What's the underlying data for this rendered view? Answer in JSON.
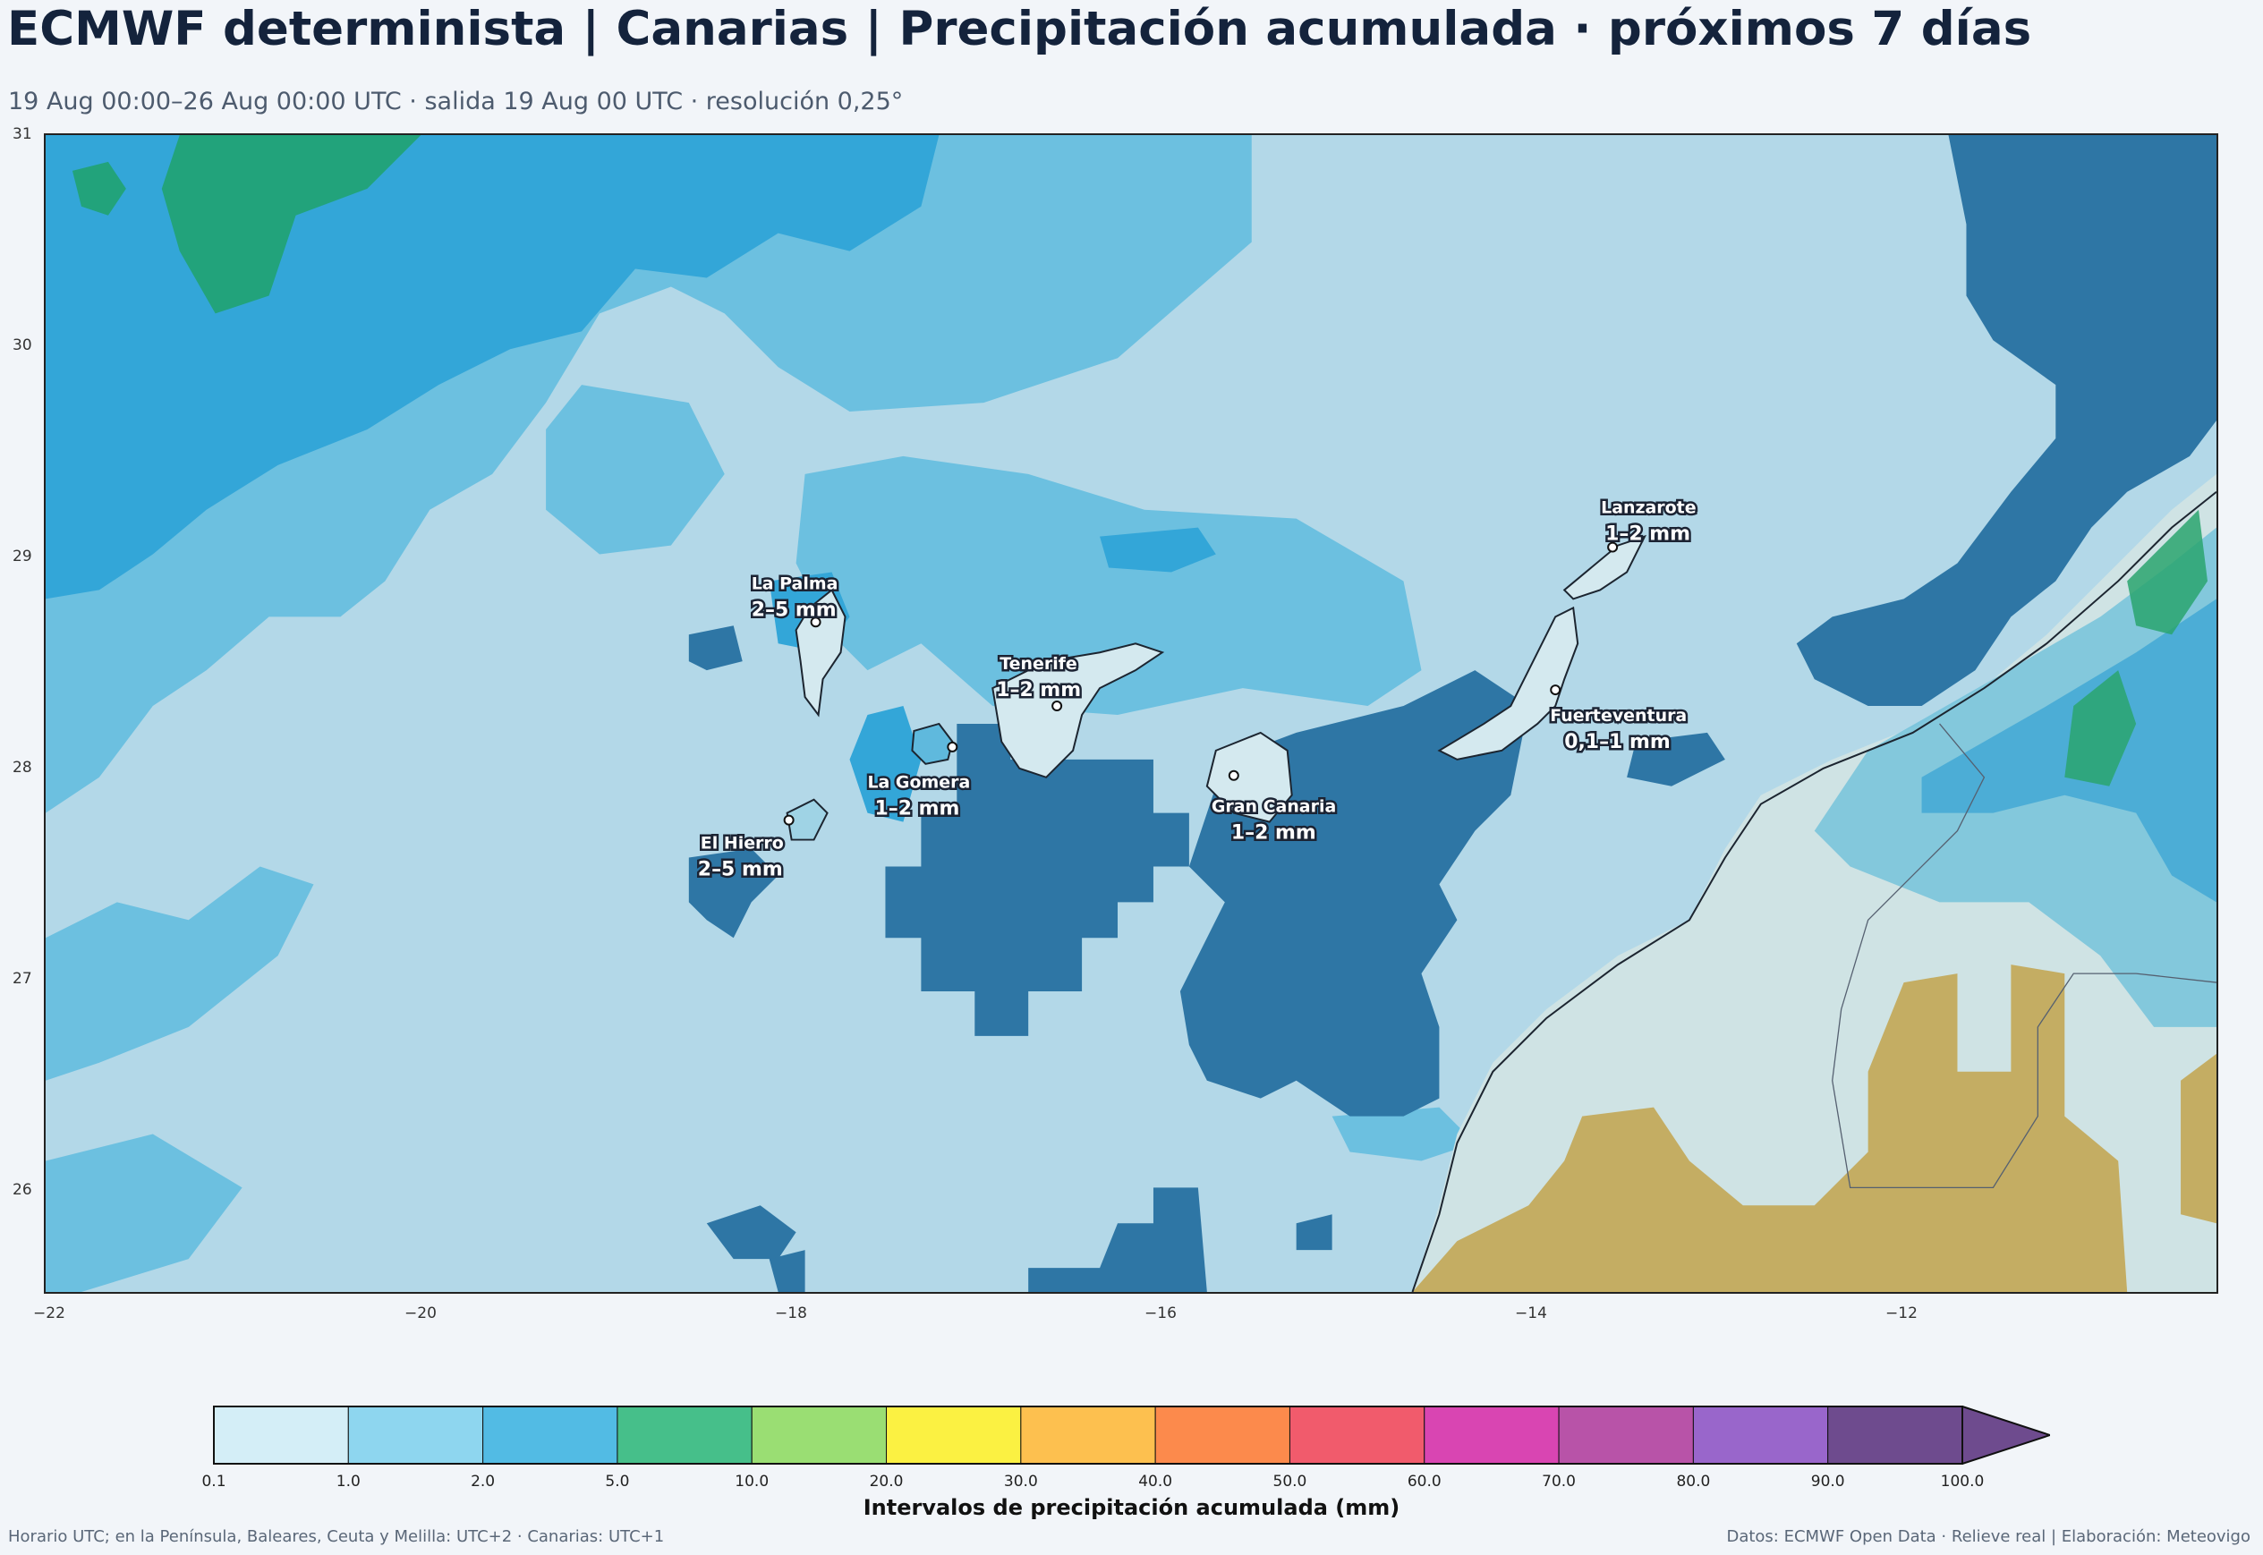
{
  "header": {
    "title": "ECMWF determinista | Canarias | Precipitación acumulada · próximos 7 días",
    "subtitle": "19 Aug 00:00–26 Aug 00:00 UTC · salida 19 Aug 00 UTC · resolución 0,25°"
  },
  "map": {
    "lon_range": [
      -22,
      -10.4
    ],
    "lat_range": [
      25.5,
      31
    ],
    "x_ticks": [
      "−22",
      "−20",
      "−18",
      "−16",
      "−14",
      "−12"
    ],
    "y_ticks": [
      "31",
      "30",
      "29",
      "28",
      "27",
      "26"
    ],
    "islands": [
      {
        "name": "La Palma",
        "value": "2–5 mm"
      },
      {
        "name": "El Hierro",
        "value": "2–5 mm"
      },
      {
        "name": "La Gomera",
        "value": "1–2 mm"
      },
      {
        "name": "Tenerife",
        "value": "1–2 mm"
      },
      {
        "name": "Gran Canaria",
        "value": "1–2 mm"
      },
      {
        "name": "Lanzarote",
        "value": "1–2 mm"
      },
      {
        "name": "Fuerteventura",
        "value": "0,1–1 mm"
      }
    ]
  },
  "colorbar": {
    "title": "Intervalos de precipitación acumulada (mm)",
    "bounds": [
      "0.1",
      "1.0",
      "2.0",
      "5.0",
      "10.0",
      "20.0",
      "30.0",
      "40.0",
      "50.0",
      "60.0",
      "70.0",
      "80.0",
      "90.0",
      "100.0"
    ],
    "colors": [
      "#d4eef7",
      "#8ed6ef",
      "#52bbe4",
      "#46bf8a",
      "#9ade73",
      "#fbf142",
      "#fdc04f",
      "#fc8a4c",
      "#f15b6c",
      "#d945b2",
      "#b853a8",
      "#9966cb",
      "#6e4b8e"
    ]
  },
  "footer": {
    "left": "Horario UTC; en la Península, Baleares, Ceuta y Melilla: UTC+2 · Canarias: UTC+1",
    "right": "Datos: ECMWF Open Data · Relieve real | Elaboración: Meteovigo"
  }
}
